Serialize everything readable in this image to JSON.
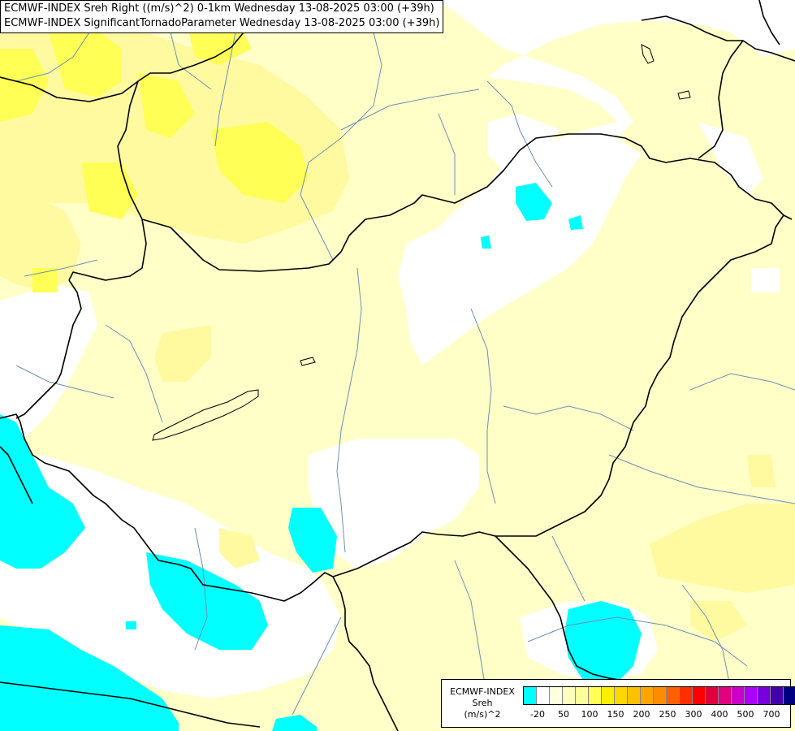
{
  "header": {
    "line1": "ECMWF-INDEX Sreh Right ((m/s)^2) 0-1km Wednesday 13-08-2025 03:00 (+39h)",
    "line2": "ECMWF-INDEX SignificantTornadoParameter Wednesday 13-08-2025 03:00 (+39h)"
  },
  "legend": {
    "title_line1": "ECMWF-INDEX",
    "title_line2": "Sreh",
    "title_line3": "(m/s)^2",
    "swatch_colors": [
      "#00ffff",
      "#ffffff",
      "#ffffe0",
      "#ffffc0",
      "#ffff99",
      "#ffff55",
      "#ffee00",
      "#ffd700",
      "#ffc000",
      "#ffa500",
      "#ff8c00",
      "#ff6000",
      "#ff3000",
      "#ff0000",
      "#e00040",
      "#e00080",
      "#cc00cc",
      "#aa00ff",
      "#7700dd",
      "#4400aa",
      "#000080"
    ],
    "ticks": [
      "-20",
      "50",
      "100",
      "150",
      "200",
      "250",
      "300",
      "400",
      "500",
      "700"
    ]
  },
  "colors": {
    "border": "#000000",
    "river": "#6f8fb5",
    "cyan": "#00ffff",
    "pale_yellow": "#ffffc8",
    "light_yellow": "#fffaa0",
    "yellow": "#ffff55"
  }
}
